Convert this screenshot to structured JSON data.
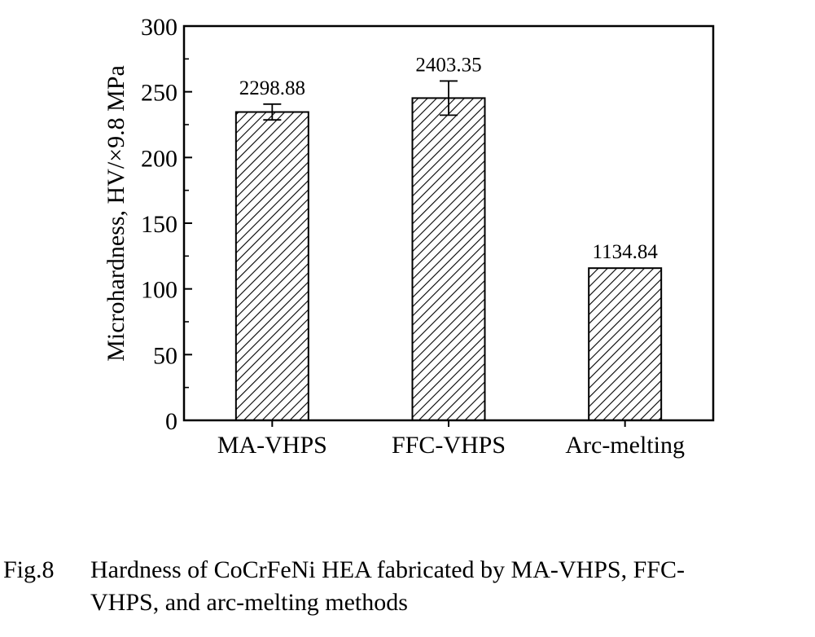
{
  "chart_data": {
    "type": "bar",
    "categories": [
      "MA-VHPS",
      "FFC-VHPS",
      "Arc-melting"
    ],
    "values": [
      234.6,
      245.2,
      115.8
    ],
    "errors": [
      6,
      13,
      0
    ],
    "data_labels": [
      "2298.88",
      "2403.35",
      "1134.84"
    ],
    "ylabel": "Microhardness, HV/×9.8 MPa",
    "xlabel": "",
    "title": "",
    "ylim": [
      0,
      300
    ],
    "y_ticks": [
      0,
      50,
      100,
      150,
      200,
      250,
      300
    ],
    "grid": false,
    "bar_fill": "diagonal-hatch",
    "colors": {
      "bar_stroke": "#000000",
      "hatch": "#000000",
      "background": "#ffffff"
    }
  },
  "caption": {
    "label": "Fig.8",
    "line1": "Hardness of CoCrFeNi HEA fabricated by MA-VHPS, FFC-",
    "line2": "VHPS, and arc-melting methods"
  }
}
